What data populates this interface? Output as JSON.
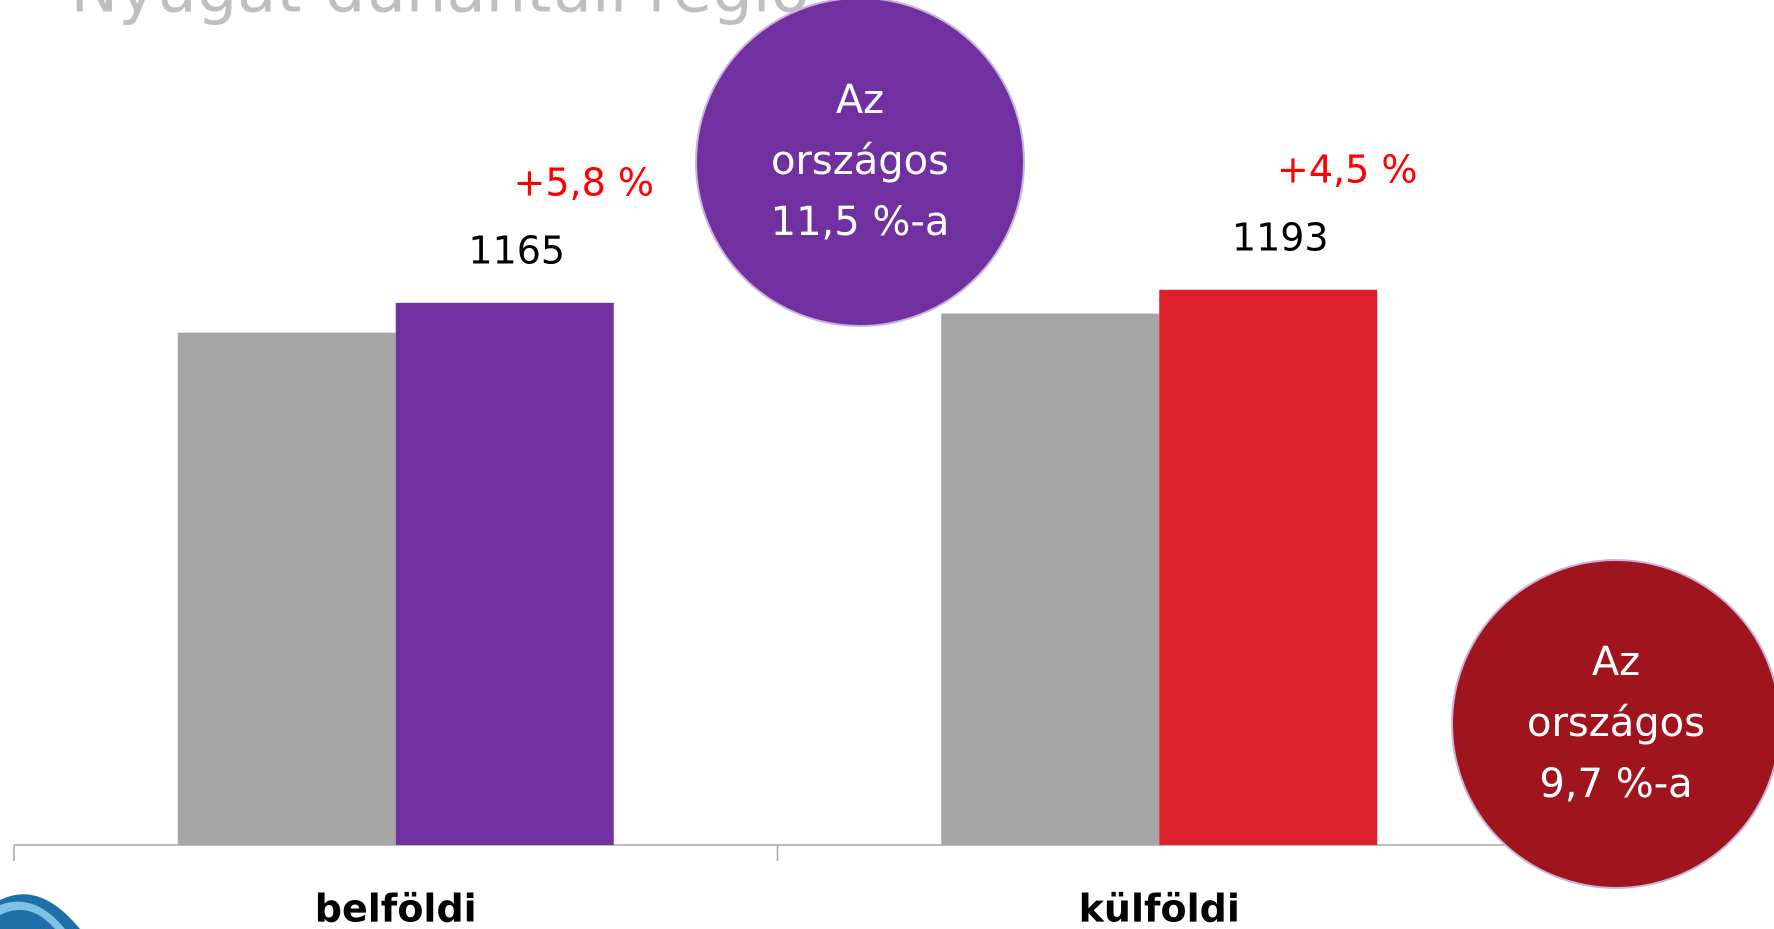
{
  "chart_data": {
    "type": "bar",
    "title": "Nyugat-dunántúli régió",
    "categories": [
      "belföldi",
      "külföldi"
    ],
    "series": [
      {
        "colors": [
          "#a6a6a6",
          "#a6a6a6"
        ],
        "values": [
          1101,
          1142
        ]
      },
      {
        "colors": [
          "#7030a0",
          "#d9202b"
        ],
        "values": [
          1165,
          1193
        ]
      }
    ],
    "ylim": [
      0,
      1300
    ],
    "annotations": [
      {
        "text": "+5,8 %",
        "color": "#ff0000"
      },
      {
        "text": "+4,5 %",
        "color": "#ff0000"
      }
    ],
    "bubbles": [
      {
        "lines": [
          "Az",
          "országos",
          "11,5  %-a"
        ],
        "color": "#7030a0"
      },
      {
        "lines": [
          "Az",
          "országos",
          "9,7  %-a"
        ],
        "color": "#a0141e"
      }
    ]
  }
}
